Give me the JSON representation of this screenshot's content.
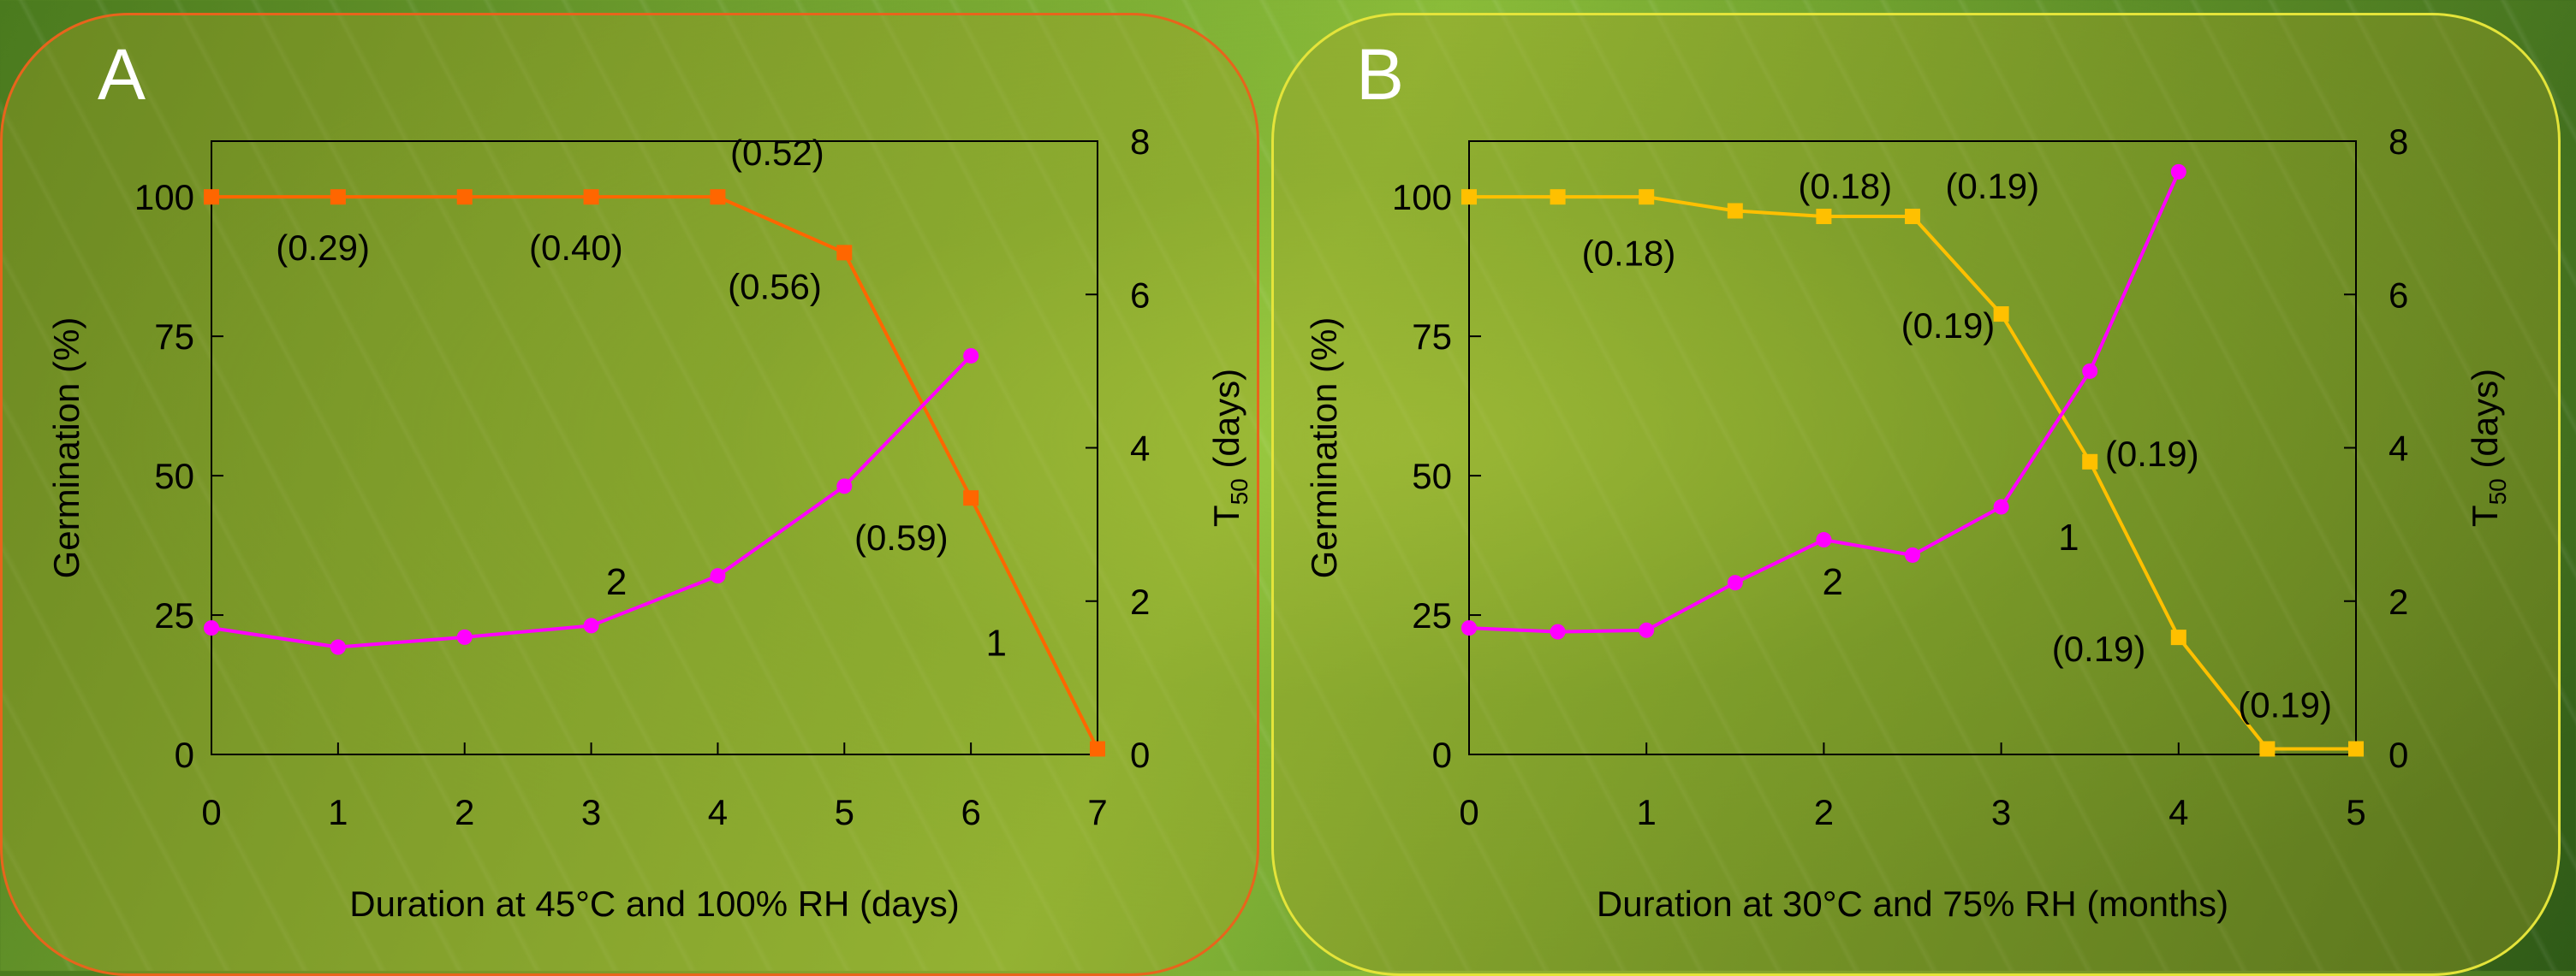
{
  "colors": {
    "series1_a": "#ff6600",
    "series1_b": "#ffc000",
    "series2": "#ff00ff",
    "panel_a_border": "#e8641c",
    "panel_b_border": "#e4e43a",
    "label": "#ffffff"
  },
  "chart_data": [
    {
      "panel_label": "A",
      "type": "line",
      "xlabel": "Duration at 45°C and 100% RH (days)",
      "ylabel": "Germination (%)",
      "y2label_main": "T",
      "y2label_sub": "50",
      "y2label_rest": " (days)",
      "xlim": [
        0,
        7
      ],
      "ylim": [
        0,
        110
      ],
      "y2lim": [
        0,
        8
      ],
      "x_ticks": [
        0,
        1,
        2,
        3,
        4,
        5,
        6,
        7
      ],
      "y_ticks": [
        0,
        25,
        50,
        75,
        100
      ],
      "y2_ticks": [
        0,
        2,
        4,
        6,
        8
      ],
      "series": [
        {
          "label": "1",
          "axis": "left",
          "marker": "square",
          "x": [
            0,
            1,
            2,
            3,
            4,
            5,
            6,
            7
          ],
          "y": [
            100,
            100,
            100,
            100,
            100,
            90,
            46,
            1
          ]
        },
        {
          "label": "2",
          "axis": "right",
          "marker": "circle",
          "x": [
            0,
            1,
            2,
            3,
            4,
            5,
            6
          ],
          "y": [
            1.65,
            1.4,
            1.53,
            1.68,
            2.33,
            3.5,
            5.2
          ]
        }
      ],
      "series_labels": [
        {
          "text": "1",
          "x": 6.2,
          "y": 20
        },
        {
          "text": "2",
          "x": 3.2,
          "y": 31
        }
      ],
      "annotations": [
        {
          "text": "(0.29)",
          "x": 0.88,
          "y": 91
        },
        {
          "text": "(0.40)",
          "x": 2.88,
          "y": 91
        },
        {
          "text": "(0.52)",
          "x": 4.47,
          "y": 108
        },
        {
          "text": "(0.56)",
          "x": 4.45,
          "y": 84
        },
        {
          "text": "(0.59)",
          "x": 5.45,
          "y": 39
        }
      ]
    },
    {
      "panel_label": "B",
      "type": "line",
      "xlabel": "Duration at 30°C and 75% RH (months)",
      "ylabel": "Germination (%)",
      "y2label_main": "T",
      "y2label_sub": "50",
      "y2label_rest": " (days)",
      "xlim": [
        0,
        5
      ],
      "ylim": [
        0,
        110
      ],
      "y2lim": [
        0,
        8
      ],
      "x_ticks": [
        0,
        1,
        2,
        3,
        4,
        5
      ],
      "y_ticks": [
        0,
        25,
        50,
        75,
        100
      ],
      "y2_ticks": [
        0,
        2,
        4,
        6,
        8
      ],
      "series": [
        {
          "label": "1",
          "axis": "left",
          "marker": "square",
          "x": [
            0,
            0.5,
            1,
            1.5,
            2,
            2.5,
            3,
            3.5,
            4,
            4.5,
            5
          ],
          "y": [
            100,
            100,
            100,
            97.5,
            96.5,
            96.5,
            79,
            52.5,
            21,
            1,
            1
          ]
        },
        {
          "label": "2",
          "axis": "right",
          "marker": "circle",
          "x": [
            0,
            0.5,
            1,
            1.5,
            2,
            2.5,
            3,
            3.5,
            4
          ],
          "y": [
            1.65,
            1.6,
            1.62,
            2.24,
            2.8,
            2.6,
            3.23,
            5,
            7.6
          ]
        }
      ],
      "series_labels": [
        {
          "text": "1",
          "x": 3.38,
          "y": 39
        },
        {
          "text": "2",
          "x": 2.05,
          "y": 31
        }
      ],
      "annotations": [
        {
          "text": "(0.18)",
          "x": 0.9,
          "y": 90
        },
        {
          "text": "(0.18)",
          "x": 2.12,
          "y": 102
        },
        {
          "text": "(0.19)",
          "x": 2.95,
          "y": 102
        },
        {
          "text": "(0.19)",
          "x": 2.7,
          "y": 77
        },
        {
          "text": "(0.19)",
          "x": 3.85,
          "y": 54
        },
        {
          "text": "(0.19)",
          "x": 3.55,
          "y": 19
        },
        {
          "text": "(0.19)",
          "x": 4.6,
          "y": 9
        }
      ]
    }
  ]
}
